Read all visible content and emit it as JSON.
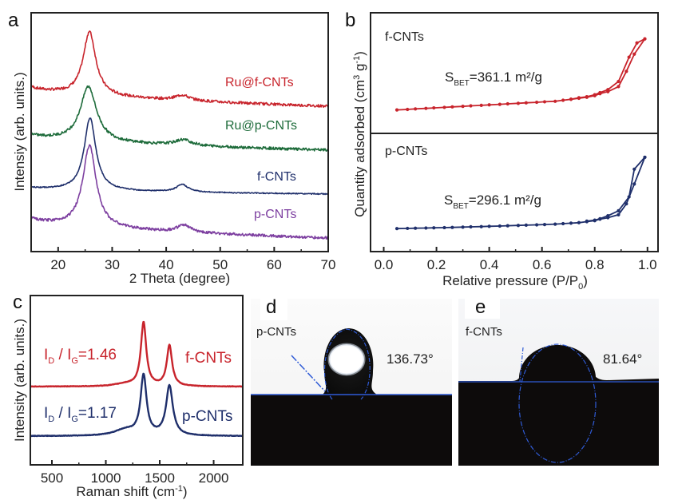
{
  "figure": {
    "panels": [
      "a",
      "b",
      "c",
      "d",
      "e"
    ]
  },
  "chart_data": [
    {
      "id": "a",
      "type": "line",
      "panel_letter": "a",
      "title": "",
      "xlabel": "2 Theta (degree)",
      "ylabel": "Intensiy (arb. units.)",
      "xlim": [
        15,
        70
      ],
      "xticks": [
        20,
        30,
        40,
        50,
        60,
        70
      ],
      "grid": false,
      "series": [
        {
          "name": "Ru@f-CNTs",
          "color": "#c8242c",
          "offset": 3.0,
          "peak1": {
            "pos": 25.8,
            "height": 1.45,
            "width": 1.4
          },
          "peak2": {
            "pos": 43.0,
            "height": 0.12,
            "width": 1.6
          },
          "base_start": 1.95,
          "base_end": 1.2,
          "noise": 0.03
        },
        {
          "name": "Ru@p-CNTs",
          "color": "#1d6b3a",
          "offset": 2.0,
          "peak1": {
            "pos": 25.6,
            "height": 1.25,
            "width": 1.8
          },
          "peak2": {
            "pos": 43.2,
            "height": 0.13,
            "width": 1.8
          },
          "base_start": 1.55,
          "base_end": 0.95,
          "noise": 0.03
        },
        {
          "name": "f-CNTs",
          "color": "#1f2f6b",
          "offset": 1.0,
          "peak1": {
            "pos": 25.9,
            "height": 1.65,
            "width": 1.3
          },
          "peak2": {
            "pos": 43.0,
            "height": 0.17,
            "width": 1.3
          },
          "base_start": 1.25,
          "base_end": 1.0,
          "noise": 0.012
        },
        {
          "name": "p-CNTs",
          "color": "#7d3fa0",
          "offset": 0.0,
          "peak1": {
            "pos": 25.8,
            "height": 1.85,
            "width": 1.5
          },
          "peak2": {
            "pos": 43.3,
            "height": 0.16,
            "width": 1.5
          },
          "base_start": 1.4,
          "base_end": 0.65,
          "noise": 0.03
        }
      ]
    },
    {
      "id": "b",
      "type": "line",
      "panel_letter": "b",
      "title": "",
      "xlabel": "Relative pressure (P/P0)",
      "xlabel_main": "Relative pressure (P/P",
      "xlabel_sub": "0",
      "xlabel_end": ")",
      "ylabel": "Quantity adsorbed (cm3 g-1)",
      "ylabel_main": "Quantity adsorbed (cm",
      "ylabel_sup1": "3",
      "ylabel_mid": " g",
      "ylabel_sup2": "-1",
      "ylabel_end": ")",
      "xlim": [
        -0.05,
        1.04
      ],
      "xticks": [
        0.0,
        0.2,
        0.4,
        0.6,
        0.8,
        1.0
      ],
      "xtick_labels": [
        "0.0",
        "0.2",
        "0.4",
        "0.6",
        "0.8",
        "1.0"
      ],
      "grid": false,
      "subplots": [
        {
          "label": "f-CNTs",
          "color": "#c8242c",
          "annotation_main": "S",
          "annotation_sub": "BET",
          "annotation_rest": "=361.1 m²/g",
          "ylim": [
            0,
            100
          ],
          "adsorption": {
            "x": [
              0.05,
              0.09,
              0.12,
              0.16,
              0.19,
              0.23,
              0.26,
              0.3,
              0.33,
              0.37,
              0.4,
              0.44,
              0.47,
              0.51,
              0.54,
              0.58,
              0.61,
              0.65,
              0.68,
              0.71,
              0.74,
              0.77,
              0.8,
              0.82,
              0.85,
              0.89,
              0.92,
              0.95,
              0.99
            ],
            "y": [
              20,
              20.5,
              21,
              21.5,
              22,
              22.5,
              23,
              23.5,
              24,
              24.5,
              25,
              25.5,
              26,
              26.5,
              27,
              27.5,
              28,
              28.5,
              29.5,
              30.5,
              31.5,
              32.5,
              34,
              36,
              38,
              43,
              58,
              75,
              90
            ]
          },
          "desorption": {
            "x": [
              0.99,
              0.96,
              0.93,
              0.89,
              0.85,
              0.82,
              0.8,
              0.77,
              0.74,
              0.71
            ],
            "y": [
              90,
              86,
              72,
              48,
              40,
              37,
              35,
              33,
              32,
              30.5
            ]
          }
        },
        {
          "label": "p-CNTs",
          "color": "#1f2f6b",
          "annotation_main": "S",
          "annotation_sub": "BET",
          "annotation_rest": "=296.1 m²/g",
          "ylim": [
            0,
            100
          ],
          "adsorption": {
            "x": [
              0.05,
              0.09,
              0.12,
              0.16,
              0.19,
              0.23,
              0.26,
              0.3,
              0.33,
              0.37,
              0.4,
              0.44,
              0.47,
              0.51,
              0.54,
              0.58,
              0.61,
              0.65,
              0.68,
              0.71,
              0.74,
              0.77,
              0.8,
              0.82,
              0.85,
              0.89,
              0.92,
              0.95,
              0.99
            ],
            "y": [
              20,
              20.2,
              20.4,
              20.6,
              20.8,
              21,
              21.2,
              21.5,
              21.8,
              22,
              22.3,
              22.6,
              22.9,
              23.2,
              23.5,
              23.8,
              24.1,
              24.5,
              25,
              25.5,
              26,
              27,
              28,
              29.5,
              31,
              34,
              45,
              65,
              92
            ]
          },
          "desorption": {
            "x": [
              0.99,
              0.95,
              0.93,
              0.89,
              0.85,
              0.82,
              0.8,
              0.77
            ],
            "y": [
              92,
              80,
              52,
              38,
              33,
              30,
              28.5,
              27.5
            ]
          }
        }
      ]
    },
    {
      "id": "c",
      "type": "line",
      "panel_letter": "c",
      "title": "",
      "xlabel": "Raman shift (cm-1)",
      "xlabel_main": "Raman shift (cm",
      "xlabel_sup": "-1",
      "xlabel_end": ")",
      "ylabel": "Intensity (arb. units.)",
      "xlim": [
        300,
        2270
      ],
      "xticks": [
        500,
        1000,
        1500,
        2000
      ],
      "minor_xticks": [
        750,
        1250,
        1750
      ],
      "grid": false,
      "series": [
        {
          "name": "f-CNTs",
          "color": "#c8242c",
          "offset": 1.0,
          "D_band": {
            "pos": 1350,
            "height": 1.28,
            "width": 30
          },
          "G_band": {
            "pos": 1590,
            "height": 0.82,
            "width": 30
          },
          "ratio_label_I": "I",
          "ratio_label_D": "D",
          "ratio_label_mid": " / I",
          "ratio_label_G": "G",
          "ratio_value": "=1.46"
        },
        {
          "name": "p-CNTs",
          "color": "#1f2f6b",
          "offset": 0.0,
          "D_band": {
            "pos": 1350,
            "height": 1.2,
            "width": 33
          },
          "G_band": {
            "pos": 1590,
            "height": 1.0,
            "width": 38
          },
          "ratio_label_I": "I",
          "ratio_label_D": "D",
          "ratio_label_mid": " / I",
          "ratio_label_G": "G",
          "ratio_value": "=1.17"
        }
      ]
    }
  ],
  "photos": [
    {
      "id": "d",
      "panel_letter": "d",
      "sample": "p-CNTs",
      "contact_angle": "136.73°"
    },
    {
      "id": "e",
      "panel_letter": "e",
      "sample": "f-CNTs",
      "contact_angle": "81.64°"
    }
  ]
}
